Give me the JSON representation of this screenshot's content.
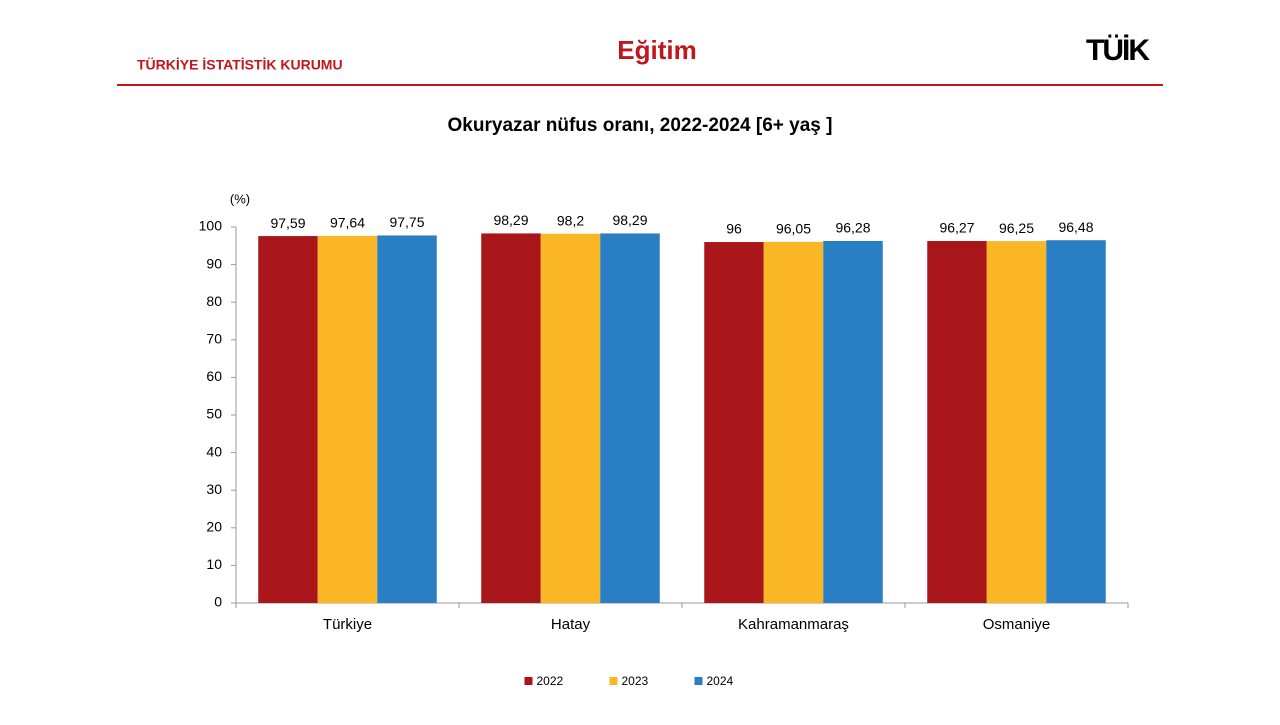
{
  "header": {
    "org": "TÜRKİYE İSTATİSTİK KURUMU",
    "section": "Eğitim",
    "logo": "TÜİK"
  },
  "chart_data": {
    "type": "bar",
    "title": "Okuryazar nüfus oranı, 2022-2024  [6+ yaş ]",
    "y_label": "(%)",
    "categories": [
      "Türkiye",
      "Hatay",
      "Kahramanmaraş",
      "Osmaniye"
    ],
    "series": [
      {
        "name": "2022",
        "color": "#a8161a",
        "values": [
          97.59,
          98.29,
          96,
          96.27
        ],
        "value_labels": [
          "97,59",
          "98,29",
          "96",
          "96,27"
        ]
      },
      {
        "name": "2023",
        "color": "#fbb625",
        "values": [
          97.64,
          98.2,
          96.05,
          96.25
        ],
        "value_labels": [
          "97,64",
          "98,2",
          "96,05",
          "96,25"
        ]
      },
      {
        "name": "2024",
        "color": "#2a7fc4",
        "values": [
          97.75,
          98.29,
          96.28,
          96.48
        ],
        "value_labels": [
          "97,75",
          "98,29",
          "96,28",
          "96,48"
        ]
      }
    ],
    "ylim": [
      0,
      100
    ],
    "yticks": [
      0,
      10,
      20,
      30,
      40,
      50,
      60,
      70,
      80,
      90,
      100
    ]
  }
}
